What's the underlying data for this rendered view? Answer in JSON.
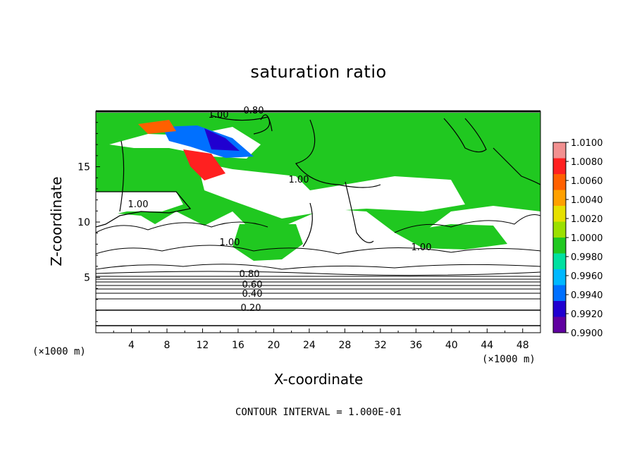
{
  "chart_data": {
    "type": "heatmap",
    "title": "saturation ratio",
    "xlabel": "X-coordinate",
    "ylabel": "Z-coordinate",
    "x_unit": "(×1000 m)",
    "z_unit": "(×1000 m)",
    "xlim": [
      0,
      50
    ],
    "ylim": [
      0,
      20
    ],
    "x_ticks": [
      "4",
      "8",
      "12",
      "16",
      "20",
      "24",
      "28",
      "32",
      "36",
      "40",
      "44",
      "48"
    ],
    "y_ticks": [
      "5",
      "10",
      "15"
    ],
    "colorbar": {
      "range": [
        0.99,
        1.01
      ],
      "labels": [
        "1.0100",
        "1.0080",
        "1.0060",
        "1.0040",
        "1.0020",
        "1.0000",
        "0.9980",
        "0.9960",
        "0.9940",
        "0.9920",
        "0.9900"
      ],
      "colors": [
        "#f29090",
        "#ff2020",
        "#ff6000",
        "#ffa000",
        "#e6e000",
        "#9be000",
        "#20c820",
        "#00e0a0",
        "#00b8ff",
        "#0070ff",
        "#2000d0",
        "#6000a0"
      ]
    },
    "contour_labels": [
      "1.00",
      "0.80",
      "1.00",
      "1.00",
      "1.00",
      "1.00",
      "0.80",
      "0.60",
      "0.40",
      "0.20"
    ],
    "contour_interval": "CONTOUR INTERVAL = 1.000E-01"
  }
}
